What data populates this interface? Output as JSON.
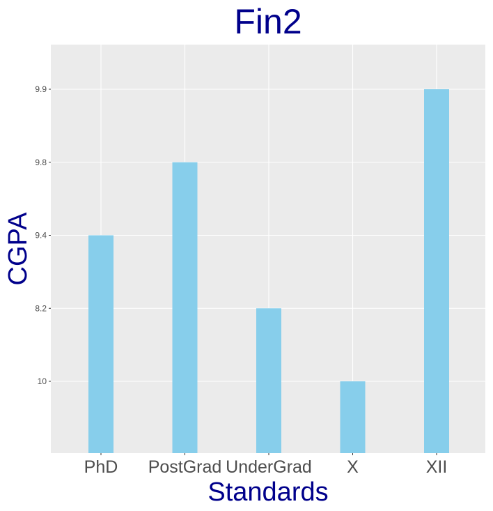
{
  "chart_data": {
    "type": "bar",
    "title": "Fin2",
    "xlabel": "Standards",
    "ylabel": "CGPA",
    "categories": [
      "PhD",
      "PostGrad",
      "UnderGrad",
      "X",
      "XII"
    ],
    "y_tick_labels": [
      "10",
      "8.2",
      "9.4",
      "9.8",
      "9.9"
    ],
    "values": [
      "9.4",
      "9.8",
      "8.2",
      "10",
      "9.9"
    ],
    "y_axis": "discrete",
    "grid": true,
    "legend": "none",
    "colors": {
      "bar": "#87ceeb",
      "panel_background": "#ebebeb",
      "grid": "#ffffff",
      "title": "#00008b",
      "tick_text": "#4d4d4d"
    }
  }
}
